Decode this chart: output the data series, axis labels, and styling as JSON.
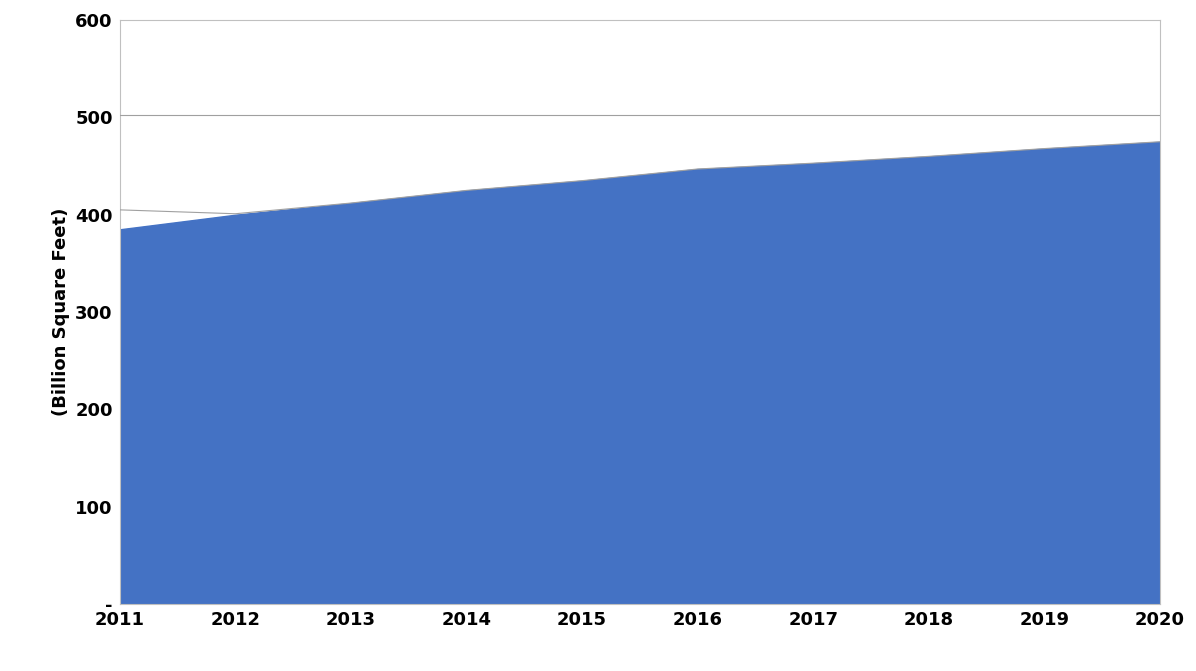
{
  "years": [
    2011,
    2012,
    2013,
    2014,
    2015,
    2016,
    2017,
    2018,
    2019,
    2020
  ],
  "area_values": [
    385,
    400,
    412,
    425,
    435,
    447,
    453,
    460,
    468,
    475
  ],
  "upper_line_value": 502,
  "thin_line_values": [
    405,
    401,
    412,
    425,
    435,
    447,
    453,
    460,
    468,
    475
  ],
  "area_color": "#4472C4",
  "upper_line_color": "#a0a0a0",
  "thin_line_color": "#a0a0a0",
  "spine_color": "#c0c0c0",
  "ylabel": "(Billion Square Feet)",
  "ylim": [
    0,
    600
  ],
  "xlim": [
    2011,
    2020
  ],
  "yticks": [
    0,
    100,
    200,
    300,
    400,
    500,
    600
  ],
  "ytick_labels": [
    "-",
    "100",
    "200",
    "300",
    "400",
    "500",
    "600"
  ],
  "xticks": [
    2011,
    2012,
    2013,
    2014,
    2015,
    2016,
    2017,
    2018,
    2019,
    2020
  ],
  "background_color": "#ffffff",
  "figsize": [
    11.96,
    6.71
  ],
  "dpi": 100
}
